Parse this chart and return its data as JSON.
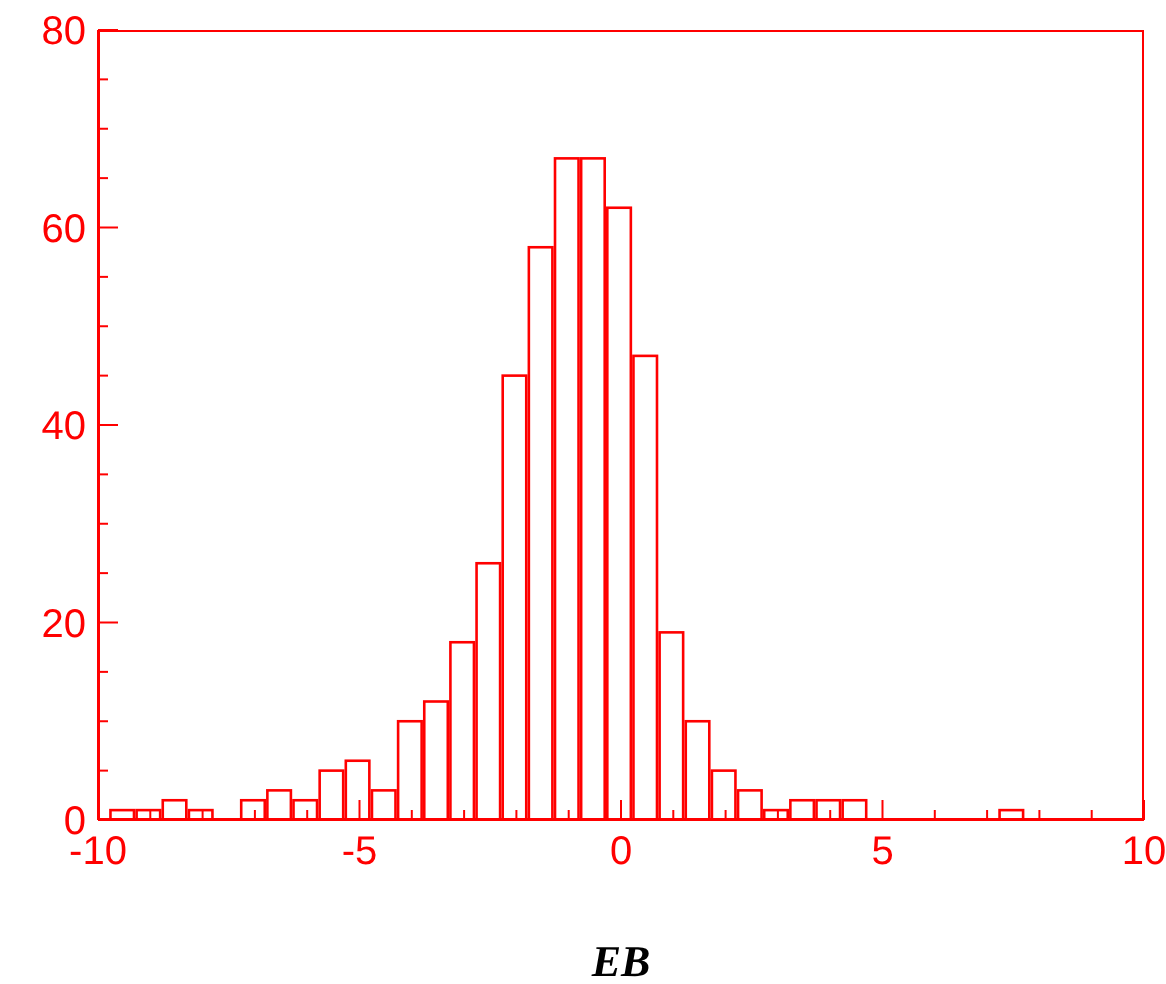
{
  "chart_data": {
    "type": "histogram",
    "xlabel": "EB",
    "color": "#ff0000",
    "bins": [
      -9.8,
      -9.3,
      -8.8,
      -8.3,
      -7.8,
      -7.3,
      -6.8,
      -6.3,
      -5.8,
      -5.3,
      -4.8,
      -4.3,
      -3.8,
      -3.3,
      -2.8,
      -2.3,
      -1.8,
      -1.3,
      -0.8,
      -0.3,
      0.2,
      0.7,
      1.2,
      1.7,
      2.2,
      2.7,
      3.2,
      3.7,
      4.2,
      4.7,
      5.2,
      5.7,
      6.2,
      6.7,
      7.2,
      7.7
    ],
    "values": [
      1,
      1,
      2,
      1,
      0,
      2,
      3,
      2,
      5,
      6,
      3,
      10,
      12,
      18,
      26,
      45,
      58,
      67,
      67,
      62,
      47,
      19,
      10,
      5,
      3,
      1,
      2,
      2,
      2,
      0,
      0,
      0,
      0,
      0,
      1
    ],
    "xlim": [
      -10,
      10
    ],
    "xticks": [
      -10,
      {
        "value": -9,
        "label": null
      },
      {
        "value": -8,
        "label": null
      },
      {
        "value": -7,
        "label": null
      },
      {
        "value": -6,
        "label": null
      },
      -5,
      {
        "value": -4,
        "label": null
      },
      {
        "value": -3,
        "label": null
      },
      {
        "value": -2,
        "label": null
      },
      {
        "value": -1,
        "label": null
      },
      0,
      {
        "value": 1,
        "label": null
      },
      {
        "value": 2,
        "label": null
      },
      {
        "value": 3,
        "label": null
      },
      {
        "value": 4,
        "label": null
      },
      5,
      {
        "value": 6,
        "label": null
      },
      {
        "value": 7,
        "label": null
      },
      {
        "value": 8,
        "label": null
      },
      {
        "value": 9,
        "label": null
      },
      10
    ],
    "ylim": [
      0,
      80
    ],
    "yticks": [
      0,
      {
        "value": 5,
        "label": null
      },
      {
        "value": 10,
        "label": null
      },
      {
        "value": 15,
        "label": null
      },
      20,
      {
        "value": 25,
        "label": null
      },
      {
        "value": 30,
        "label": null
      },
      {
        "value": 35,
        "label": null
      },
      40,
      {
        "value": 45,
        "label": null
      },
      {
        "value": 50,
        "label": null
      },
      {
        "value": 55,
        "label": null
      },
      60,
      {
        "value": 65,
        "label": null
      },
      {
        "value": 70,
        "label": null
      },
      {
        "value": 75,
        "label": null
      },
      80
    ]
  }
}
